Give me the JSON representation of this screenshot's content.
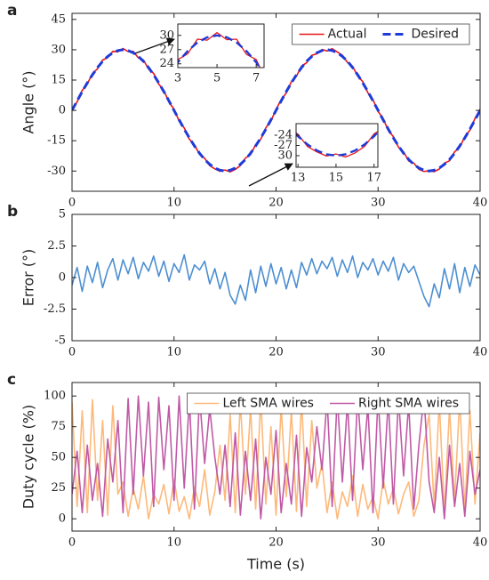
{
  "chart_data": [
    {
      "type": "line",
      "panel_label": "a",
      "ylabel": "Angle (°)",
      "legend": "upper right",
      "xlim": [
        0,
        40
      ],
      "xticks": [
        0,
        10,
        20,
        30,
        40
      ],
      "ylim": [
        -40,
        48
      ],
      "yticks": [
        -30,
        -15,
        0,
        15,
        30,
        45
      ],
      "x": [
        0,
        0.5,
        1,
        1.5,
        2,
        2.5,
        3,
        3.5,
        4,
        4.5,
        5,
        5.5,
        6,
        6.5,
        7,
        7.5,
        8,
        8.5,
        9,
        9.5,
        10,
        10.5,
        11,
        11.5,
        12,
        12.5,
        13,
        13.5,
        14,
        14.5,
        15,
        15.5,
        16,
        16.5,
        17,
        17.5,
        18,
        18.5,
        19,
        19.5,
        20,
        20.5,
        21,
        21.5,
        22,
        22.5,
        23,
        23.5,
        24,
        24.5,
        25,
        25.5,
        26,
        26.5,
        27,
        27.5,
        28,
        28.5,
        29,
        29.5,
        30,
        30.5,
        31,
        31.5,
        32,
        32.5,
        33,
        33.5,
        34,
        34.5,
        35,
        35.5,
        36,
        36.5,
        37,
        37.5,
        38,
        38.5,
        39,
        39.5,
        40
      ],
      "series": [
        {
          "name": "Actual",
          "color": "#e8141b",
          "style": "solid",
          "values": [
            0.3,
            4.2,
            9.9,
            13.1,
            18.2,
            20.6,
            24.9,
            26.1,
            29.2,
            29.0,
            30.6,
            29.1,
            29.2,
            26.0,
            24.9,
            20.5,
            18.3,
            13.0,
            9.9,
            4.1,
            0.6,
            -5.3,
            -8.7,
            -14.2,
            -17.0,
            -21.8,
            -23.7,
            -27.3,
            -28.9,
            -30.1,
            -29.5,
            -30.4,
            -29.2,
            -27.3,
            -23.6,
            -21.9,
            -16.9,
            -14.3,
            -8.6,
            -5.2,
            0.5,
            5.3,
            8.6,
            14.2,
            17.0,
            21.9,
            23.6,
            27.2,
            28.0,
            30.1,
            29.4,
            30.5,
            28.9,
            27.3,
            23.7,
            21.8,
            17.0,
            14.2,
            8.7,
            5.3,
            -0.5,
            -4.1,
            -9.9,
            -13.0,
            -18.2,
            -20.6,
            -25.0,
            -26.1,
            -29.1,
            -30.2,
            -29.8,
            -30.3,
            -29.0,
            -26.1,
            -24.9,
            -20.5,
            -18.3,
            -13.0,
            -9.8,
            -4.0,
            0.6
          ]
        },
        {
          "name": "Desired",
          "color": "#1f3bd8",
          "style": "dashed",
          "values": [
            0,
            4.7,
            9.3,
            13.6,
            17.6,
            21.2,
            24.3,
            26.7,
            28.5,
            29.6,
            30,
            29.6,
            28.5,
            26.7,
            24.3,
            21.2,
            17.6,
            13.6,
            9.3,
            4.7,
            0,
            -4.7,
            -9.3,
            -13.6,
            -17.6,
            -21.2,
            -24.3,
            -26.7,
            -28.5,
            -29.6,
            -30,
            -29.6,
            -28.5,
            -26.7,
            -24.3,
            -21.2,
            -17.6,
            -13.6,
            -9.3,
            -4.7,
            0,
            4.7,
            9.3,
            13.6,
            17.6,
            21.2,
            24.3,
            26.7,
            28.5,
            29.6,
            30,
            29.6,
            28.5,
            26.7,
            24.3,
            21.2,
            17.6,
            13.6,
            9.3,
            4.7,
            0,
            -4.7,
            -9.3,
            -13.6,
            -17.6,
            -21.2,
            -24.3,
            -26.7,
            -28.5,
            -29.6,
            -30,
            -29.6,
            -28.5,
            -26.7,
            -24.3,
            -21.2,
            -17.6,
            -13.6,
            -9.3,
            -4.7,
            0
          ]
        }
      ],
      "insets": [
        {
          "xlim": [
            3,
            7.4
          ],
          "xticks": [
            3,
            5,
            7
          ],
          "ylim": [
            23.2,
            32.4
          ],
          "yticks": [
            24,
            27,
            30
          ]
        },
        {
          "xlim": [
            12.9,
            17.2
          ],
          "xticks": [
            13,
            15,
            17
          ],
          "ylim": [
            -33.4,
            -20.6
          ],
          "yticks": [
            -24,
            -27,
            {
              "value": -30,
              "label": "30"
            }
          ]
        }
      ]
    },
    {
      "type": "line",
      "panel_label": "b",
      "ylabel": "Error (°)",
      "xlim": [
        0,
        40
      ],
      "xticks": [
        0,
        10,
        20,
        30,
        40
      ],
      "ylim": [
        -5,
        5
      ],
      "yticks": [
        -5,
        -2.5,
        0,
        2.5,
        5
      ],
      "x": [
        0,
        0.5,
        1,
        1.5,
        2,
        2.5,
        3,
        3.5,
        4,
        4.5,
        5,
        5.5,
        6,
        6.5,
        7,
        7.5,
        8,
        8.5,
        9,
        9.5,
        10,
        10.5,
        11,
        11.5,
        12,
        12.5,
        13,
        13.5,
        14,
        14.5,
        15,
        15.5,
        16,
        16.5,
        17,
        17.5,
        18,
        18.5,
        19,
        19.5,
        20,
        20.5,
        21,
        21.5,
        22,
        22.5,
        23,
        23.5,
        24,
        24.5,
        25,
        25.5,
        26,
        26.5,
        27,
        27.5,
        28,
        28.5,
        29,
        29.5,
        30,
        30.5,
        31,
        31.5,
        32,
        32.5,
        33,
        33.5,
        34,
        34.5,
        35,
        35.5,
        36,
        36.5,
        37,
        37.5,
        38,
        38.5,
        39,
        39.5,
        40
      ],
      "series": [
        {
          "color": "#4d8fd1",
          "style": "solid",
          "values": [
            -0.6,
            0.8,
            -1.1,
            0.9,
            -0.4,
            1.2,
            -0.8,
            0.6,
            1.5,
            -0.2,
            1.4,
            0.3,
            1.6,
            -0.1,
            1.2,
            0.5,
            1.7,
            0.1,
            1.3,
            -0.3,
            1.1,
            0.4,
            1.8,
            -0.2,
            1.0,
            0.6,
            1.3,
            -0.5,
            0.7,
            -0.9,
            0.4,
            -1.4,
            -2.1,
            -0.6,
            -1.8,
            0.6,
            -1.2,
            0.9,
            -0.7,
            1.1,
            -0.5,
            0.8,
            -0.9,
            0.6,
            -0.8,
            1.2,
            0.2,
            1.5,
            0.3,
            1.3,
            0.7,
            1.6,
            0.1,
            1.4,
            0.4,
            1.7,
            0.0,
            1.2,
            0.6,
            1.5,
            0.2,
            1.3,
            0.5,
            1.6,
            -0.2,
            1.1,
            0.4,
            0.9,
            -0.3,
            -1.5,
            -2.3,
            -0.5,
            -1.6,
            0.7,
            -0.9,
            1.1,
            -1.2,
            0.8,
            -0.7,
            1.0,
            0.2
          ]
        }
      ]
    },
    {
      "type": "line",
      "panel_label": "c",
      "ylabel": "Duty cycle (%)",
      "xlabel": "Time (s)",
      "legend": "upper right",
      "xlim": [
        0,
        40
      ],
      "xticks": [
        0,
        10,
        20,
        30,
        40
      ],
      "ylim": [
        -10,
        111
      ],
      "yticks": [
        0,
        25,
        50,
        75,
        100
      ],
      "x": [
        0,
        0.5,
        1,
        1.5,
        2,
        2.5,
        3,
        3.5,
        4,
        4.5,
        5,
        5.5,
        6,
        6.5,
        7,
        7.5,
        8,
        8.5,
        9,
        9.5,
        10,
        10.5,
        11,
        11.5,
        12,
        12.5,
        13,
        13.5,
        14,
        14.5,
        15,
        15.5,
        16,
        16.5,
        17,
        17.5,
        18,
        18.5,
        19,
        19.5,
        20,
        20.5,
        21,
        21.5,
        22,
        22.5,
        23,
        23.5,
        24,
        24.5,
        25,
        25.5,
        26,
        26.5,
        27,
        27.5,
        28,
        28.5,
        29,
        29.5,
        30,
        30.5,
        31,
        31.5,
        32,
        32.5,
        33,
        33.5,
        34,
        34.5,
        35,
        35.5,
        36,
        36.5,
        37,
        37.5,
        38,
        38.5,
        39,
        39.5,
        40
      ],
      "series": [
        {
          "name": "Left SMA wires",
          "color": "#fdb97a",
          "style": "solid",
          "values": [
            95,
            10,
            88,
            5,
            97,
            15,
            80,
            3,
            92,
            20,
            30,
            2,
            25,
            8,
            35,
            0,
            20,
            12,
            28,
            4,
            32,
            6,
            18,
            0,
            26,
            10,
            40,
            3,
            22,
            60,
            15,
            85,
            5,
            95,
            20,
            90,
            8,
            98,
            12,
            75,
            3,
            92,
            18,
            88,
            6,
            96,
            10,
            80,
            25,
            45,
            5,
            30,
            0,
            22,
            10,
            35,
            2,
            28,
            8,
            18,
            0,
            32,
            12,
            25,
            4,
            20,
            30,
            2,
            15,
            60,
            85,
            10,
            95,
            5,
            90,
            15,
            98,
            8,
            88,
            12,
            70
          ]
        },
        {
          "name": "Right SMA wires",
          "color": "#c05aa6",
          "style": "solid",
          "values": [
            20,
            55,
            5,
            60,
            15,
            45,
            2,
            65,
            30,
            80,
            5,
            98,
            20,
            100,
            35,
            95,
            10,
            99,
            40,
            92,
            15,
            100,
            25,
            97,
            8,
            100,
            45,
            90,
            50,
            20,
            60,
            10,
            70,
            3,
            55,
            15,
            65,
            0,
            50,
            20,
            72,
            5,
            45,
            12,
            68,
            2,
            58,
            30,
            75,
            40,
            98,
            10,
            100,
            30,
            95,
            15,
            99,
            40,
            92,
            5,
            100,
            25,
            97,
            12,
            99,
            35,
            94,
            8,
            60,
            100,
            30,
            5,
            50,
            0,
            60,
            10,
            45,
            2,
            55,
            20,
            40
          ]
        }
      ]
    }
  ]
}
